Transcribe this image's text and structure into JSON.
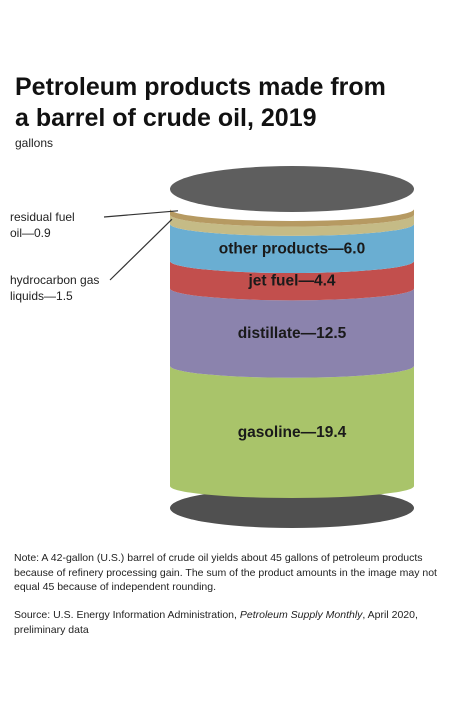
{
  "colors": {
    "lid": "#5e5e5e",
    "residual_fuel_oil": "#b69a62",
    "hydrocarbon_gas_liquids": "#c5bb86",
    "other_products": "#6aaed2",
    "jet_fuel": "#c24f4d",
    "distillate": "#8b83ad",
    "gasoline": "#a9c46a",
    "base": "#505050"
  },
  "chart_data": {
    "type": "bar",
    "title": "Petroleum products made from a barrel of crude oil, 2019",
    "title_lines": [
      "Petroleum products made from",
      "a barrel of crude oil, 2019"
    ],
    "units": "gallons",
    "series": [
      {
        "key": "gasoline",
        "label": "gasoline—19.4",
        "value": 19.4
      },
      {
        "key": "distillate",
        "label": "distillate—12.5",
        "value": 12.5
      },
      {
        "key": "jet_fuel",
        "label": "jet fuel—4.4",
        "value": 4.4
      },
      {
        "key": "other_products",
        "label": "other products—6.0",
        "value": 6.0
      },
      {
        "key": "hydrocarbon_gas_liquids",
        "label_lines": [
          "hydrocarbon gas",
          "liquids—1.5"
        ],
        "value": 1.5
      },
      {
        "key": "residual_fuel_oil",
        "label_lines": [
          "residual fuel",
          "oil—0.9"
        ],
        "value": 0.9
      }
    ]
  },
  "note": "Note: A 42-gallon (U.S.) barrel of crude oil yields about 45 gallons of petroleum products because of refinery processing gain. The sum of the product amounts in the image may not equal 45 because of independent rounding.",
  "source": {
    "prefix": "Source: U.S. Energy Information Administration, ",
    "publication": "Petroleum Supply Monthly",
    "suffix": ", April 2020, preliminary data"
  }
}
